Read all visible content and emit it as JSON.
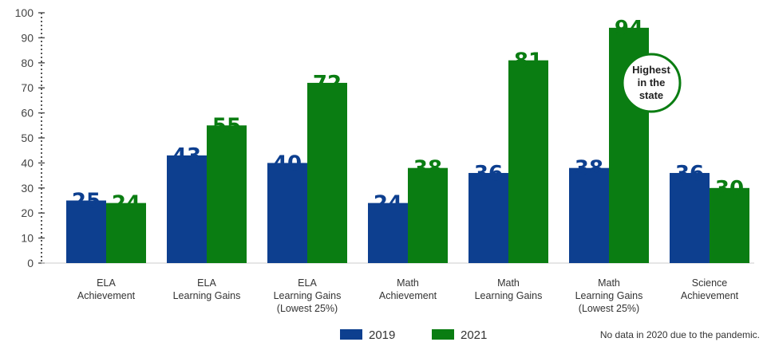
{
  "chart_data": {
    "type": "bar",
    "categories": [
      [
        "ELA",
        "Achievement"
      ],
      [
        "ELA",
        "Learning Gains"
      ],
      [
        "ELA",
        "Learning Gains",
        "(Lowest 25%)"
      ],
      [
        "Math",
        "Achievement"
      ],
      [
        "Math",
        "Learning Gains"
      ],
      [
        "Math",
        "Learning Gains",
        "(Lowest 25%)"
      ],
      [
        "Science",
        "Achievement"
      ]
    ],
    "series": [
      {
        "name": "2019",
        "color": "#0d3f8f",
        "values": [
          25,
          43,
          40,
          24,
          36,
          38,
          36
        ]
      },
      {
        "name": "2021",
        "color": "#0a7d12",
        "values": [
          24,
          55,
          72,
          38,
          81,
          94,
          30
        ]
      }
    ],
    "ylim": [
      0,
      100
    ],
    "yticks": [
      "0",
      "10",
      "20",
      "30",
      "40",
      "50",
      "60",
      "70",
      "80",
      "90",
      "100"
    ],
    "grid": false,
    "legend_position": "bottom",
    "callout": {
      "lines": [
        "Highest",
        "in the",
        "state"
      ],
      "category_index": 5,
      "series_index": 1
    },
    "note": "No data in 2020 due to the pandemic."
  }
}
